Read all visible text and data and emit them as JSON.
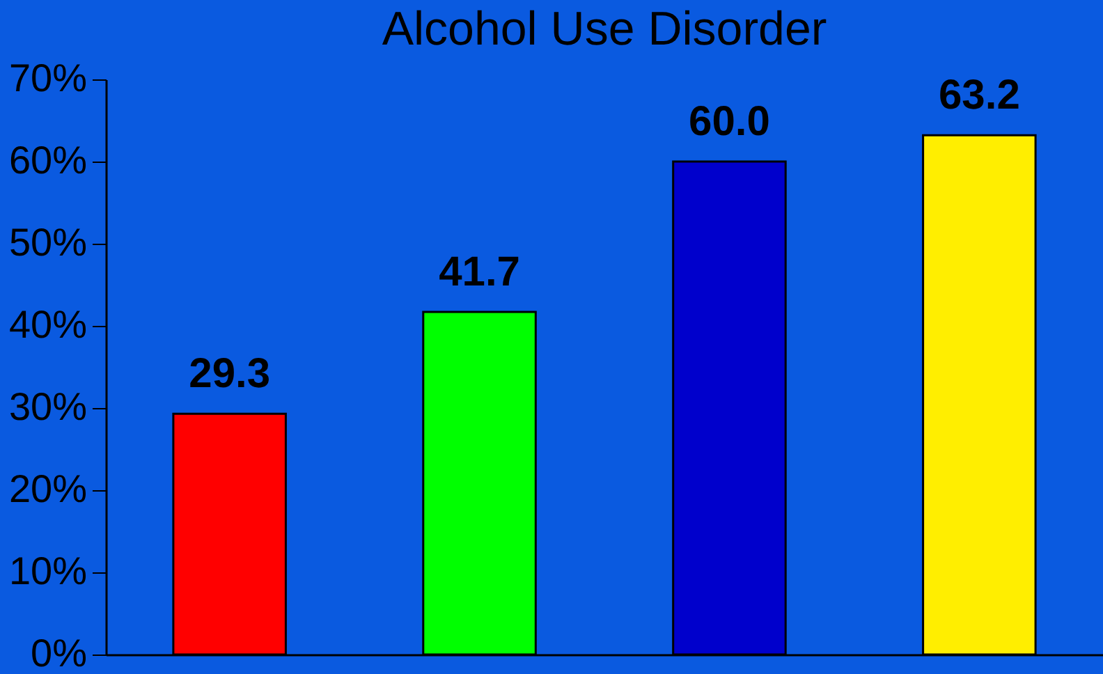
{
  "chart_data": {
    "type": "bar",
    "title": "Alcohol Use Disorder",
    "categories": [
      null,
      null,
      null,
      null
    ],
    "values": [
      29.3,
      41.7,
      60.0,
      63.2
    ],
    "colors": [
      "#ff0000",
      "#00ff00",
      "#0000cc",
      "#ffee00"
    ],
    "value_labels": [
      "29.3",
      "41.7",
      "60.0",
      "63.2"
    ],
    "ylim": [
      0,
      70
    ],
    "yticks": [
      {
        "value": 0,
        "label": "0%"
      },
      {
        "value": 10,
        "label": "10%"
      },
      {
        "value": 20,
        "label": "20%"
      },
      {
        "value": 30,
        "label": "30%"
      },
      {
        "value": 40,
        "label": "40%"
      },
      {
        "value": 50,
        "label": "50%"
      },
      {
        "value": 60,
        "label": "60%"
      },
      {
        "value": 70,
        "label": "70%"
      }
    ],
    "grid": false,
    "legend": false
  }
}
